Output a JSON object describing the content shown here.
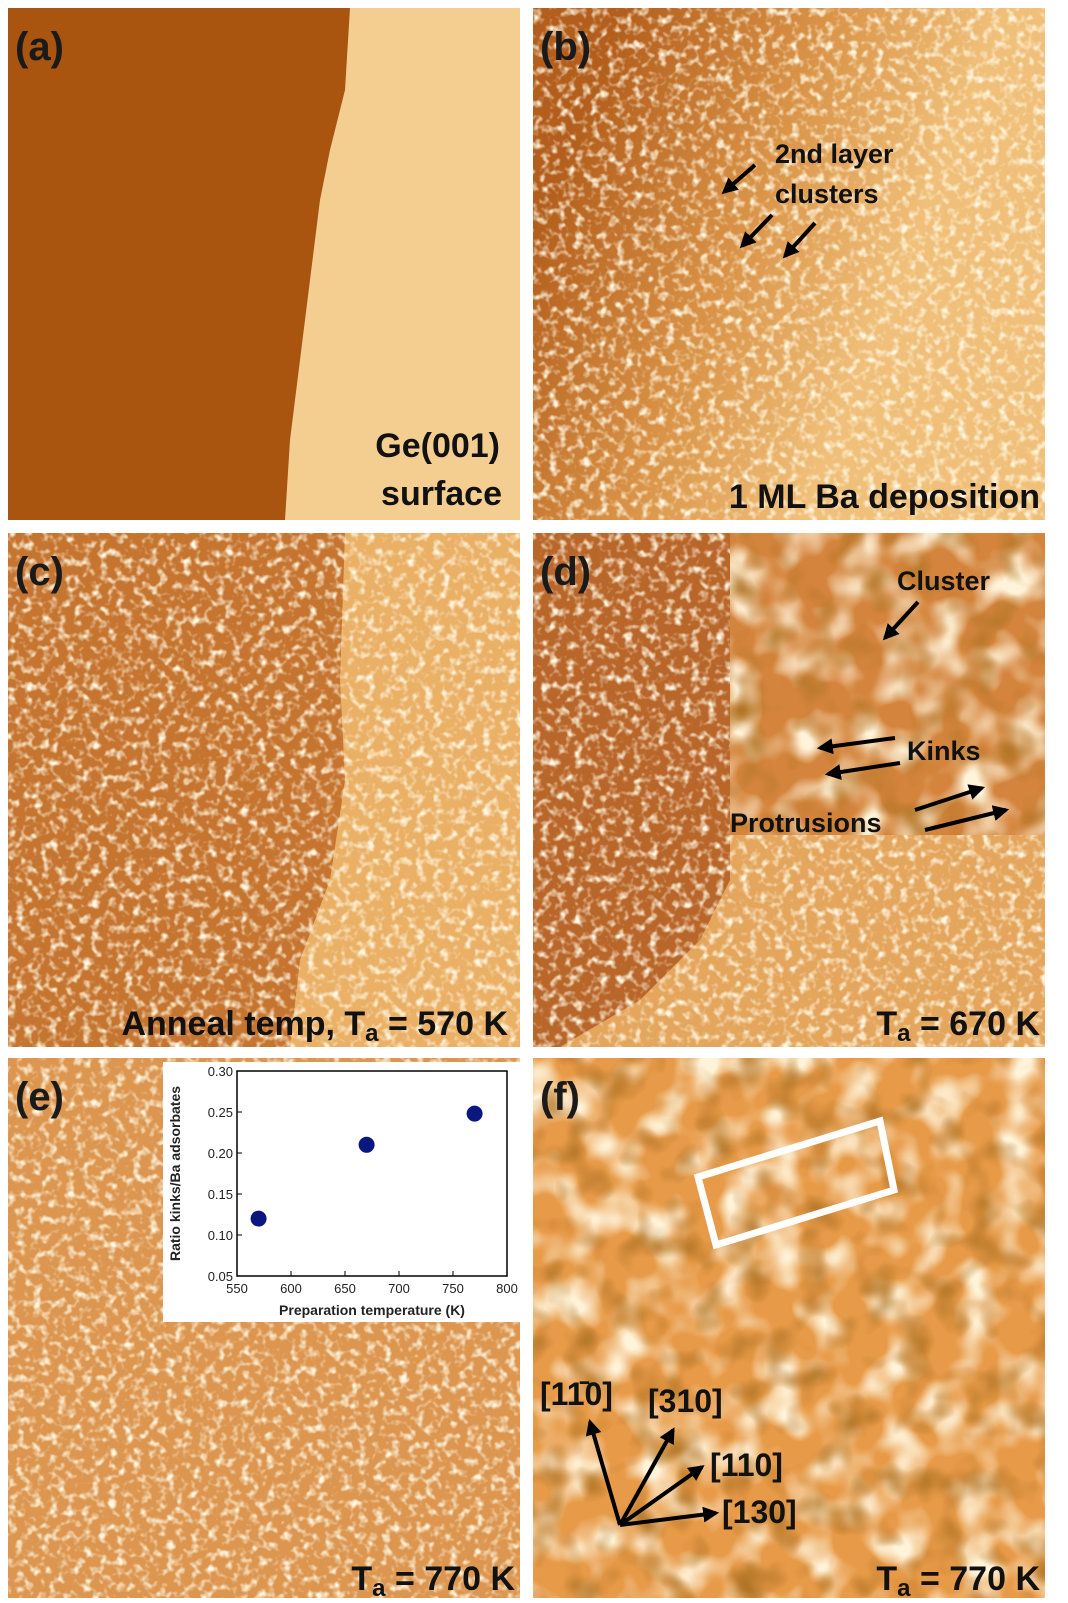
{
  "panels": [
    {
      "label": "(a)",
      "caption": [
        "Ge(001)",
        "surface"
      ]
    },
    {
      "label": "(b)",
      "caption": [
        "1 ML Ba deposition"
      ],
      "annotation": [
        "2nd layer",
        "clusters"
      ]
    },
    {
      "label": "(c)",
      "caption": [
        "Anneal temp, T",
        "a",
        " = 570 K"
      ]
    },
    {
      "label": "(d)",
      "caption": [
        "T",
        "a",
        " = 670 K"
      ],
      "annotation": [
        "Cluster",
        "Kinks",
        "Protrusions"
      ]
    },
    {
      "label": "(e)",
      "caption": [
        "T",
        "a",
        " = 770 K"
      ]
    },
    {
      "label": "(f)",
      "caption": [
        "T",
        "a",
        " = 770 K"
      ],
      "annotation": [
        "[11̄0]",
        "[310]",
        "[110]",
        "[130]"
      ]
    }
  ],
  "chart_data": {
    "type": "scatter",
    "xlabel": "Preparation temperature (K)",
    "ylabel": "Ratio kinks/Ba adsorbates",
    "x": [
      570,
      670,
      770
    ],
    "values": [
      0.12,
      0.21,
      0.248
    ],
    "color": "#0b1780",
    "xlim": [
      550,
      800
    ],
    "ylim": [
      0.05,
      0.3
    ],
    "xticks": [
      550,
      600,
      650,
      700,
      750,
      800
    ],
    "yticks": [
      {
        "value": 0.05,
        "label": "0.05"
      },
      {
        "value": 0.1,
        "label": "0.10"
      },
      {
        "value": 0.15,
        "label": "0.15"
      },
      {
        "value": 0.2,
        "label": "0.20"
      },
      {
        "value": 0.25,
        "label": "0.25"
      },
      {
        "value": 0.3,
        "label": "0.30"
      }
    ]
  }
}
